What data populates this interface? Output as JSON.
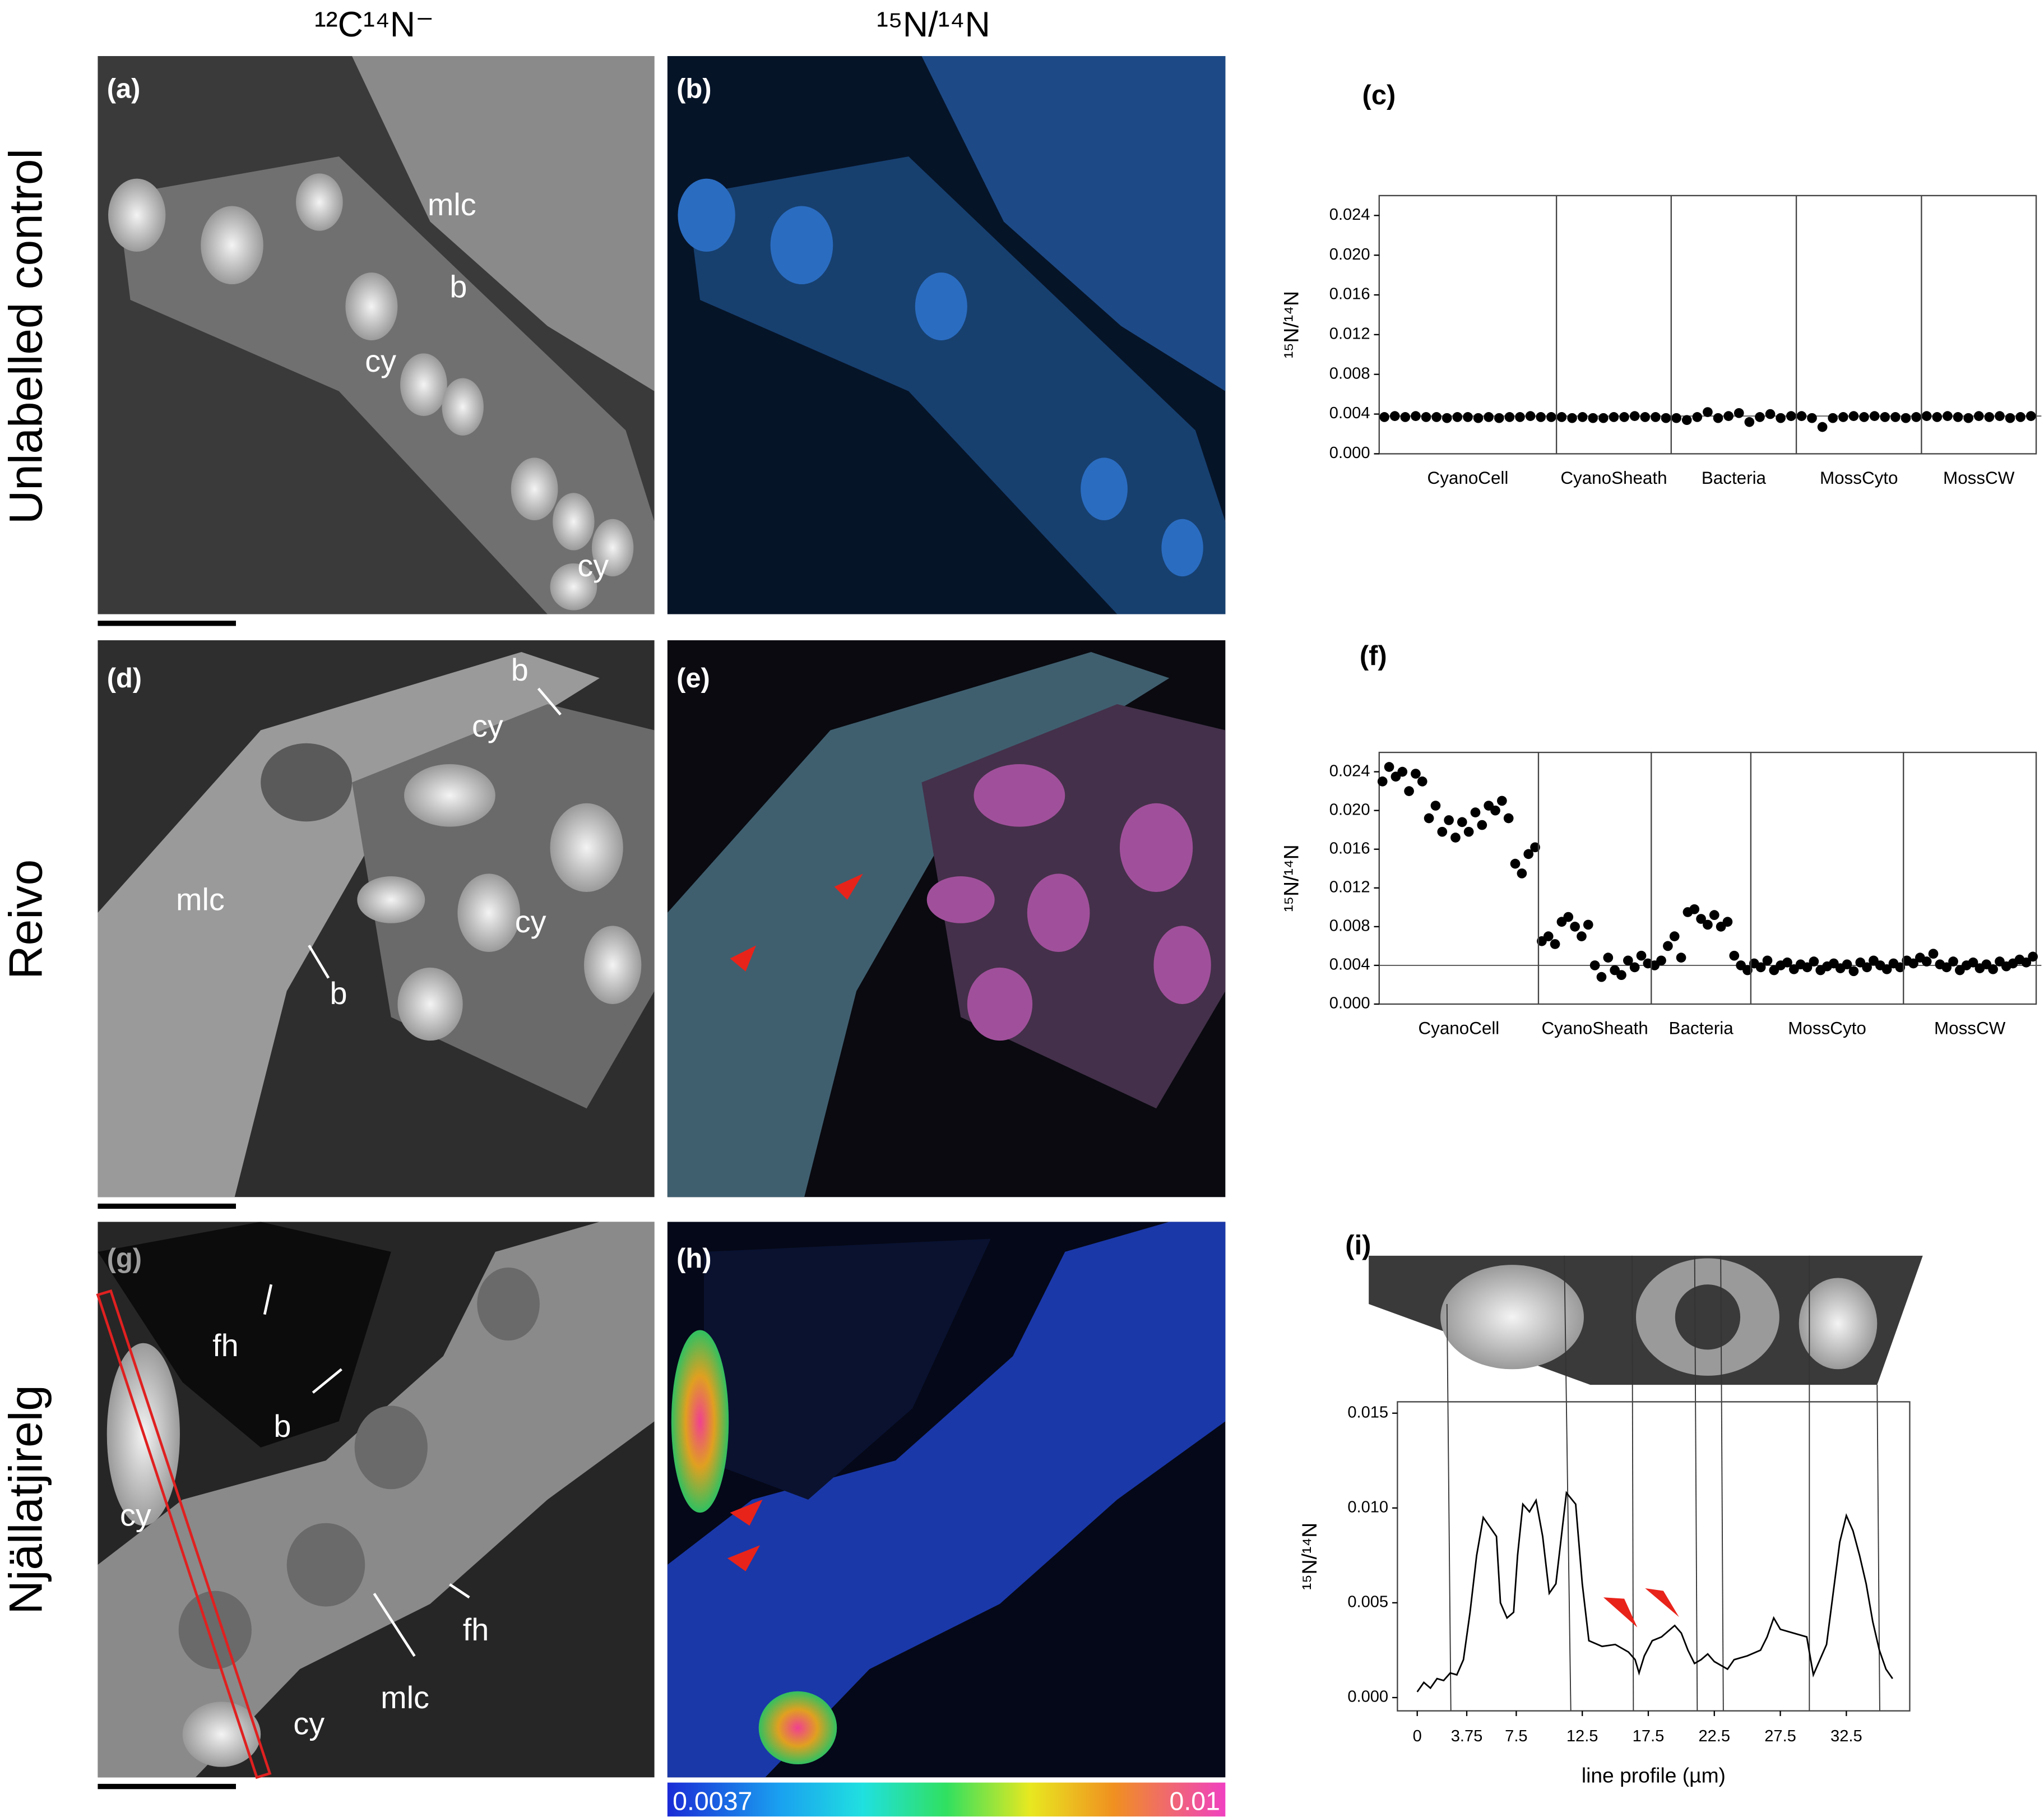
{
  "figure": {
    "column_headers": [
      "¹²C¹⁴N⁻",
      "¹⁵N/¹⁴N"
    ],
    "row_labels": [
      "Unlabelled control",
      "Reivo",
      "Njällatjirelg"
    ],
    "panels": [
      {
        "label": "(a)",
        "annotations": [
          "mlc",
          "b",
          "cy",
          "cy"
        ]
      },
      {
        "label": "(b)"
      },
      {
        "label": "(d)",
        "annotations": [
          "b",
          "cy",
          "mlc",
          "cy",
          "b"
        ]
      },
      {
        "label": "(e)"
      },
      {
        "label": "(g)",
        "annotations": [
          "fh",
          "b",
          "cy",
          "fh",
          "mlc",
          "cy"
        ]
      },
      {
        "label": "(h)"
      }
    ],
    "colorbar": {
      "min": 0.0037,
      "max": 0.01
    }
  },
  "chart_data": [
    {
      "type": "dot",
      "label": "(c)",
      "y_label": "¹⁵N/¹⁴N",
      "color": "#000000",
      "ylim": [
        0,
        0.026
      ],
      "yticks": [
        {
          "value": 0,
          "label": "0.000"
        },
        0.004,
        0.008,
        0.012,
        0.016,
        {
          "value": 0.02,
          "label": "0.020"
        },
        0.024
      ],
      "reference_line": 0.0038,
      "groups": [
        {
          "label": "CyanoCell",
          "values": [
            0.0037,
            0.0038,
            0.0037,
            0.0038,
            0.0037,
            0.0037,
            0.0036,
            0.0037,
            0.0037,
            0.0036,
            0.0037,
            0.0036,
            0.0037,
            0.0037,
            0.0038,
            0.0037,
            0.0037
          ]
        },
        {
          "label": "CyanoSheath",
          "values": [
            0.0037,
            0.0036,
            0.0037,
            0.0036,
            0.0036,
            0.0037,
            0.0037,
            0.0038,
            0.0037,
            0.0037,
            0.0036
          ]
        },
        {
          "label": "Bacteria",
          "values": [
            0.0036,
            0.0034,
            0.0037,
            0.0042,
            0.0036,
            0.0038,
            0.0041,
            0.0032,
            0.0037,
            0.004,
            0.0036,
            0.0038
          ]
        },
        {
          "label": "MossCyto",
          "values": [
            0.0038,
            0.0036,
            0.0027,
            0.0036,
            0.0037,
            0.0038,
            0.0037,
            0.0038,
            0.0037,
            0.0037,
            0.0036,
            0.0037
          ]
        },
        {
          "label": "MossCW",
          "values": [
            0.0038,
            0.0037,
            0.0038,
            0.0037,
            0.0036,
            0.0038,
            0.0037,
            0.0038,
            0.0036,
            0.0037,
            0.0038
          ]
        }
      ]
    },
    {
      "type": "dot",
      "label": "(f)",
      "y_label": "¹⁵N/¹⁴N",
      "color": "#000000",
      "ylim": [
        0,
        0.026
      ],
      "yticks": [
        {
          "value": 0,
          "label": "0.000"
        },
        0.004,
        0.008,
        0.012,
        0.016,
        {
          "value": 0.02,
          "label": "0.020"
        },
        0.024
      ],
      "reference_line": 0.004,
      "groups": [
        {
          "label": "CyanoCell",
          "values": [
            0.023,
            0.0245,
            0.0235,
            0.024,
            0.022,
            0.0238,
            0.023,
            0.0192,
            0.0205,
            0.0178,
            0.019,
            0.0172,
            0.0188,
            0.0178,
            0.0198,
            0.0185,
            0.0205,
            0.02,
            0.021,
            0.0192,
            0.0145,
            0.0135,
            0.0155,
            0.0162
          ]
        },
        {
          "label": "CyanoSheath",
          "values": [
            0.0065,
            0.007,
            0.0062,
            0.0085,
            0.009,
            0.008,
            0.007,
            0.0082,
            0.004,
            0.0028,
            0.0048,
            0.0035,
            0.003,
            0.0045,
            0.0038,
            0.005,
            0.0042
          ]
        },
        {
          "label": "Bacteria",
          "values": [
            0.004,
            0.0045,
            0.006,
            0.007,
            0.0048,
            0.0095,
            0.0098,
            0.0088,
            0.0082,
            0.0092,
            0.008,
            0.0085,
            0.005,
            0.004,
            0.0035
          ]
        },
        {
          "label": "MossCyto",
          "values": [
            0.0042,
            0.0038,
            0.0045,
            0.0035,
            0.004,
            0.0043,
            0.0036,
            0.0041,
            0.0038,
            0.0044,
            0.0035,
            0.0039,
            0.0042,
            0.0037,
            0.0041,
            0.0034,
            0.0043,
            0.0038,
            0.0045,
            0.004,
            0.0036,
            0.0042,
            0.0038
          ]
        },
        {
          "label": "MossCW",
          "values": [
            0.0045,
            0.0042,
            0.0048,
            0.0044,
            0.0052,
            0.0041,
            0.0038,
            0.0044,
            0.0035,
            0.004,
            0.0043,
            0.0037,
            0.0041,
            0.0036,
            0.0044,
            0.0039,
            0.0042,
            0.0046,
            0.0043,
            0.0049
          ]
        }
      ]
    },
    {
      "type": "line",
      "label": "(i)",
      "y_label": "¹⁵N/¹⁴N",
      "x_label": "line profile (µm)",
      "color": "#000000",
      "xlim": [
        -1.5,
        37.3
      ],
      "ylim": [
        -0.0007,
        0.0156
      ],
      "xticks": [
        0,
        3.75,
        7.5,
        12.5,
        17.5,
        22.5,
        27.5,
        32.5
      ],
      "yticks": [
        {
          "value": 0,
          "label": "0.000"
        },
        0.005,
        {
          "value": 0.01,
          "label": "0.010"
        },
        0.015
      ],
      "x": [
        0,
        0.5,
        1,
        1.5,
        2,
        2.5,
        3,
        3.5,
        4,
        4.5,
        5,
        5.5,
        6,
        6.3,
        6.8,
        7.3,
        7.6,
        8,
        8.5,
        9,
        9.5,
        10,
        10.5,
        11,
        11.3,
        12,
        12.5,
        13,
        14,
        15,
        16,
        16.5,
        16.8,
        17.2,
        17.8,
        18.5,
        19.5,
        20,
        20.5,
        21,
        21.5,
        22,
        22.5,
        23,
        23.5,
        24,
        25,
        26,
        26.5,
        27,
        27.5,
        28.5,
        29.5,
        30,
        30.5,
        31,
        31.5,
        32,
        32.5,
        33,
        33.5,
        34,
        34.5,
        35,
        35.5,
        36
      ],
      "values": [
        0.0003,
        0.0008,
        0.0005,
        0.001,
        0.0009,
        0.0013,
        0.0012,
        0.002,
        0.0045,
        0.0075,
        0.0095,
        0.009,
        0.0085,
        0.005,
        0.0042,
        0.0045,
        0.0075,
        0.0102,
        0.0098,
        0.0104,
        0.0085,
        0.0055,
        0.006,
        0.009,
        0.0108,
        0.0102,
        0.006,
        0.003,
        0.0027,
        0.0028,
        0.0024,
        0.002,
        0.0013,
        0.0022,
        0.003,
        0.0032,
        0.0038,
        0.0034,
        0.0025,
        0.0018,
        0.002,
        0.0023,
        0.0019,
        0.0017,
        0.0015,
        0.002,
        0.0022,
        0.0025,
        0.0032,
        0.0042,
        0.0036,
        0.0034,
        0.0032,
        0.0012,
        0.002,
        0.0028,
        0.0055,
        0.0082,
        0.0096,
        0.0088,
        0.0075,
        0.006,
        0.004,
        0.0025,
        0.0015,
        0.001
      ]
    }
  ]
}
